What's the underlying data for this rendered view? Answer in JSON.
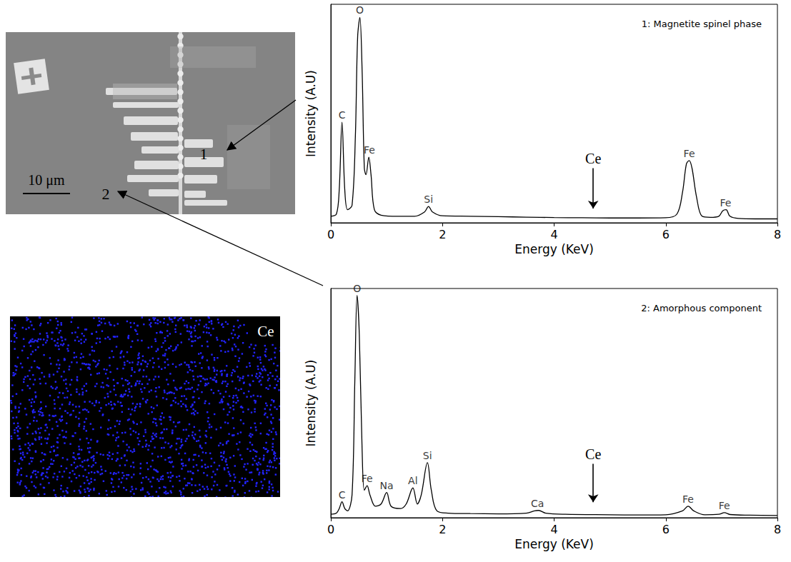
{
  "chart_data": [
    {
      "type": "line",
      "title": "1: Magnetite spinel phase",
      "x_label": "Energy (KeV)",
      "y_label": "Intensity (A.U)",
      "xlim": [
        0,
        8
      ],
      "xticks": [
        0,
        2,
        4,
        6,
        8
      ],
      "ylim": [
        0,
        100
      ],
      "tick_labels": "x",
      "grid": false,
      "color": "#000000",
      "x": [
        0,
        0.1,
        0.15,
        0.2,
        0.25,
        0.3,
        0.38,
        0.44,
        0.48,
        0.52,
        0.56,
        0.6,
        0.63,
        0.68,
        0.72,
        0.78,
        0.9,
        1.2,
        1.5,
        1.68,
        1.75,
        1.82,
        2.0,
        2.5,
        3.0,
        3.5,
        4.0,
        4.5,
        5.0,
        5.5,
        6.0,
        6.2,
        6.3,
        6.37,
        6.42,
        6.47,
        6.55,
        6.65,
        6.8,
        6.95,
        7.02,
        7.08,
        7.15,
        7.3,
        7.6,
        8.0
      ],
      "values": [
        3,
        4,
        15,
        46,
        15,
        6,
        8,
        40,
        85,
        94,
        70,
        25,
        22,
        30,
        22,
        6,
        3.5,
        3,
        3,
        5,
        7.5,
        5,
        3.2,
        3,
        2.8,
        2.6,
        2.4,
        2.3,
        2.2,
        2.2,
        2.3,
        4,
        14,
        27,
        28.5,
        25,
        12,
        3,
        2.5,
        3,
        5.5,
        6,
        3,
        2,
        1.8,
        1.8
      ],
      "annotations": [
        {
          "text": "C",
          "x": 0.2,
          "y": 46
        },
        {
          "text": "O",
          "x": 0.52,
          "y": 94
        },
        {
          "text": "Fe",
          "x": 0.69,
          "y": 30
        },
        {
          "text": "Si",
          "x": 1.75,
          "y": 7.5
        },
        {
          "text": "Fe",
          "x": 6.42,
          "y": 28.5
        },
        {
          "text": "Fe",
          "x": 7.07,
          "y": 6
        }
      ],
      "arrow_labels": [
        {
          "text": "Ce",
          "x": 4.7,
          "from": 25,
          "to": 6.5
        }
      ]
    },
    {
      "type": "line",
      "title": "2: Amorphous component",
      "x_label": "Energy (KeV)",
      "y_label": "Intensity (A.U)",
      "xlim": [
        0,
        8
      ],
      "xticks": [
        0,
        2,
        4,
        6,
        8
      ],
      "ylim": [
        0,
        100
      ],
      "tick_labels": "x",
      "grid": false,
      "color": "#000000",
      "x": [
        0,
        0.1,
        0.15,
        0.2,
        0.25,
        0.3,
        0.38,
        0.43,
        0.47,
        0.51,
        0.56,
        0.6,
        0.65,
        0.7,
        0.8,
        0.9,
        1.0,
        1.08,
        1.25,
        1.35,
        1.47,
        1.55,
        1.62,
        1.73,
        1.8,
        1.9,
        2.1,
        2.5,
        3.0,
        3.5,
        3.65,
        3.72,
        3.85,
        4.2,
        5.0,
        5.5,
        6.0,
        6.3,
        6.4,
        6.5,
        6.7,
        6.95,
        7.05,
        7.15,
        7.5,
        8.0
      ],
      "values": [
        1.5,
        2,
        4,
        7,
        4,
        3,
        10,
        60,
        97,
        80,
        30,
        12,
        14,
        10,
        5,
        6,
        11,
        5,
        4,
        6,
        13,
        6,
        10,
        24,
        12,
        3,
        2,
        1.8,
        1.7,
        2,
        3,
        3.2,
        2,
        1.5,
        1.3,
        1.2,
        1.3,
        3,
        5,
        3,
        1.3,
        1.5,
        2.2,
        1.4,
        1.1,
        1
      ],
      "annotations": [
        {
          "text": "C",
          "x": 0.2,
          "y": 7
        },
        {
          "text": "O",
          "x": 0.47,
          "y": 97
        },
        {
          "text": "Fe",
          "x": 0.65,
          "y": 14
        },
        {
          "text": "Na",
          "x": 1.0,
          "y": 11
        },
        {
          "text": "Al",
          "x": 1.47,
          "y": 13
        },
        {
          "text": "Si",
          "x": 1.73,
          "y": 24
        },
        {
          "text": "Ca",
          "x": 3.7,
          "y": 3.2
        },
        {
          "text": "Fe",
          "x": 6.4,
          "y": 5
        },
        {
          "text": "Fe",
          "x": 7.05,
          "y": 2.2
        }
      ],
      "arrow_labels": [
        {
          "text": "Ce",
          "x": 4.7,
          "from": 23.5,
          "to": 6.8
        }
      ]
    }
  ],
  "micrograph": {
    "scale_bar": "10 μm",
    "markers": [
      "1",
      "2"
    ]
  },
  "element_map": {
    "label": "Ce",
    "color": "#2323ff"
  }
}
